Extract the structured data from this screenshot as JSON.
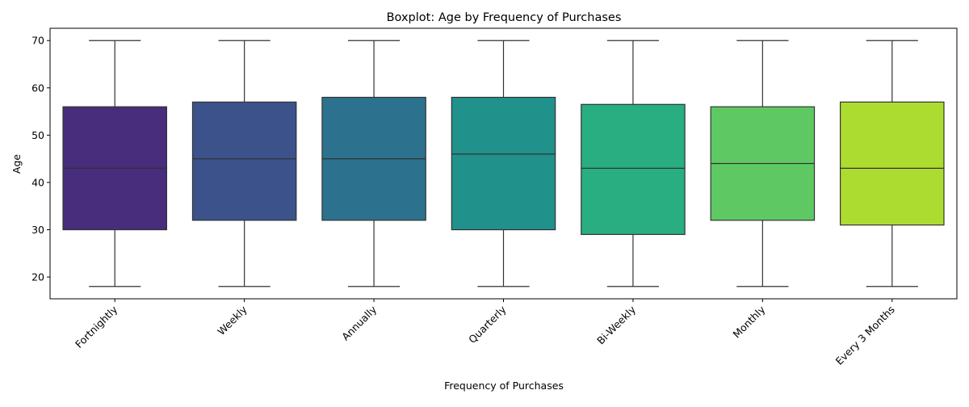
{
  "chart_data": {
    "type": "box",
    "title": "Boxplot: Age by Frequency of Purchases",
    "xlabel": "Frequency of Purchases",
    "ylabel": "Age",
    "ylim": [
      15.4,
      72.6
    ],
    "yticks": [
      20,
      30,
      40,
      50,
      60,
      70
    ],
    "grid": false,
    "categories": [
      "Fortnightly",
      "Weekly",
      "Annually",
      "Quarterly",
      "Bi-Weekly",
      "Monthly",
      "Every 3 Months"
    ],
    "boxes": [
      {
        "min": 18,
        "q1": 30,
        "median": 43,
        "q3": 56,
        "max": 70
      },
      {
        "min": 18,
        "q1": 32,
        "median": 45,
        "q3": 57,
        "max": 70
      },
      {
        "min": 18,
        "q1": 32,
        "median": 45,
        "q3": 58,
        "max": 70
      },
      {
        "min": 18,
        "q1": 30,
        "median": 46,
        "q3": 58,
        "max": 70
      },
      {
        "min": 18,
        "q1": 29,
        "median": 43,
        "q3": 56.5,
        "max": 70
      },
      {
        "min": 18,
        "q1": 32,
        "median": 44,
        "q3": 56,
        "max": 70
      },
      {
        "min": 18,
        "q1": 31,
        "median": 43,
        "q3": 57,
        "max": 70
      }
    ],
    "colors": [
      "#472d7b",
      "#3b528b",
      "#2c728e",
      "#21918c",
      "#28ae80",
      "#5ec962",
      "#addc30"
    ]
  }
}
